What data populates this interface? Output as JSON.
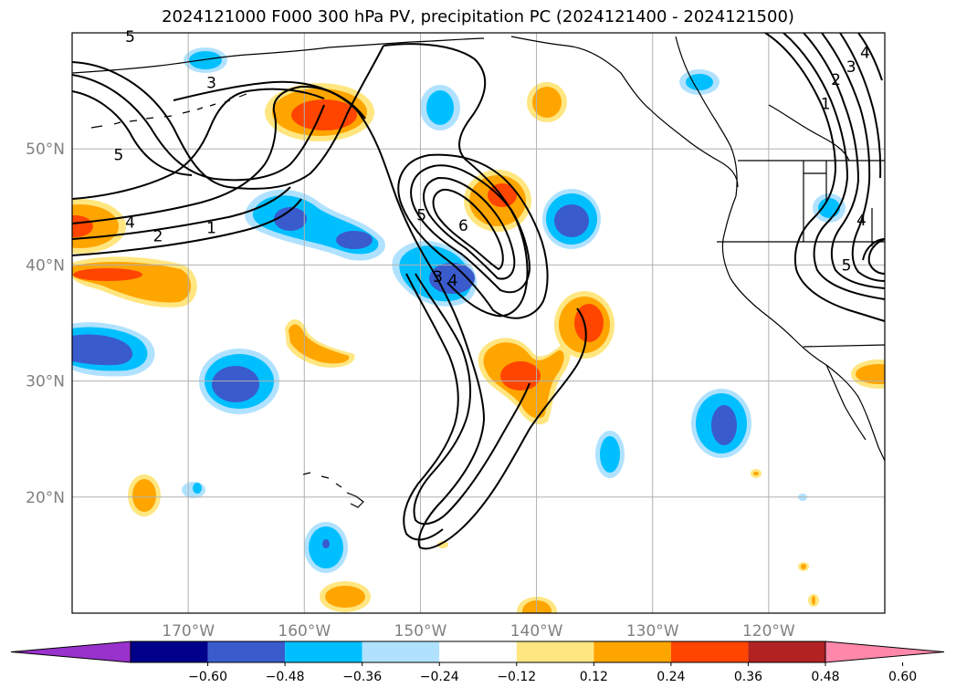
{
  "title": "2024121000 F000 300 hPa PV, precipitation PC (2024121400 - 2024121500)",
  "map": {
    "lon_range": [
      -180,
      -110
    ],
    "lat_range": [
      10,
      60
    ],
    "lon_ticks": [
      {
        "value": -170,
        "label": "170°W"
      },
      {
        "value": -160,
        "label": "160°W"
      },
      {
        "value": -150,
        "label": "150°W"
      },
      {
        "value": -140,
        "label": "140°W"
      },
      {
        "value": -130,
        "label": "130°W"
      },
      {
        "value": -120,
        "label": "120°W"
      }
    ],
    "lat_ticks": [
      {
        "value": 20,
        "label": "20°N"
      },
      {
        "value": 30,
        "label": "30°N"
      },
      {
        "value": 40,
        "label": "40°N"
      },
      {
        "value": 50,
        "label": "50°N"
      }
    ],
    "pv_contour_labels": [
      {
        "text": "5",
        "lon": -175,
        "lat": 59.7
      },
      {
        "text": "3",
        "lon": -168,
        "lat": 55.7
      },
      {
        "text": "5",
        "lon": -176,
        "lat": 49.5
      },
      {
        "text": "4",
        "lon": -175,
        "lat": 43.7
      },
      {
        "text": "2",
        "lon": -172.6,
        "lat": 42.5
      },
      {
        "text": "1",
        "lon": -168,
        "lat": 43.2
      },
      {
        "text": "5",
        "lon": -149.9,
        "lat": 44.3
      },
      {
        "text": "6",
        "lon": -146.3,
        "lat": 43.4
      },
      {
        "text": "3",
        "lon": -148.5,
        "lat": 39
      },
      {
        "text": "4",
        "lon": -147.2,
        "lat": 38.7
      },
      {
        "text": "4",
        "lon": -111.7,
        "lat": 58.3
      },
      {
        "text": "3",
        "lon": -112.9,
        "lat": 57.1
      },
      {
        "text": "2",
        "lon": -114.2,
        "lat": 56
      },
      {
        "text": "1",
        "lon": -115.1,
        "lat": 53.9
      },
      {
        "text": "4",
        "lon": -112,
        "lat": 43.9
      },
      {
        "text": "5",
        "lon": -113.3,
        "lat": 40
      }
    ]
  },
  "colorbar": {
    "ticks": [
      "−0.60",
      "−0.48",
      "−0.36",
      "−0.24",
      "−0.12",
      "0.12",
      "0.24",
      "0.36",
      "0.48",
      "0.60"
    ],
    "colors": [
      "#9932cc",
      "#00008b",
      "#3a5bcc",
      "#00bfff",
      "#b0e2ff",
      "#ffffff",
      "#ffe680",
      "#ffa500",
      "#ff4500",
      "#b22222",
      "#ff88aa"
    ]
  },
  "colors": {
    "pos_light": "#ffe680",
    "pos_mid": "#ffa500",
    "pos_strong": "#ff4500",
    "neg_light": "#b0e2ff",
    "neg_mid": "#00bfff",
    "neg_strong": "#3a5bcc",
    "grid": "#b0b0b0"
  }
}
